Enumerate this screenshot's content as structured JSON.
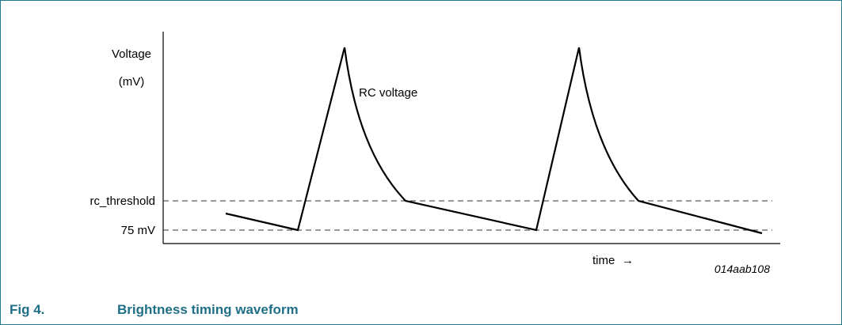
{
  "figure": {
    "number": "Fig 4.",
    "title": "Brightness timing waveform",
    "code": "014aab108"
  },
  "axes": {
    "y_label_line1": "Voltage",
    "y_label_line2": "(mV)",
    "x_label": "time",
    "x_arrow": "→"
  },
  "levels": {
    "rc_threshold": "rc_threshold",
    "v75": "75 mV"
  },
  "curve_label": "RC voltage",
  "colors": {
    "frame": "#1f7a8c",
    "caption": "#1f6f86",
    "line": "#000000",
    "dashed": "#333333"
  }
}
